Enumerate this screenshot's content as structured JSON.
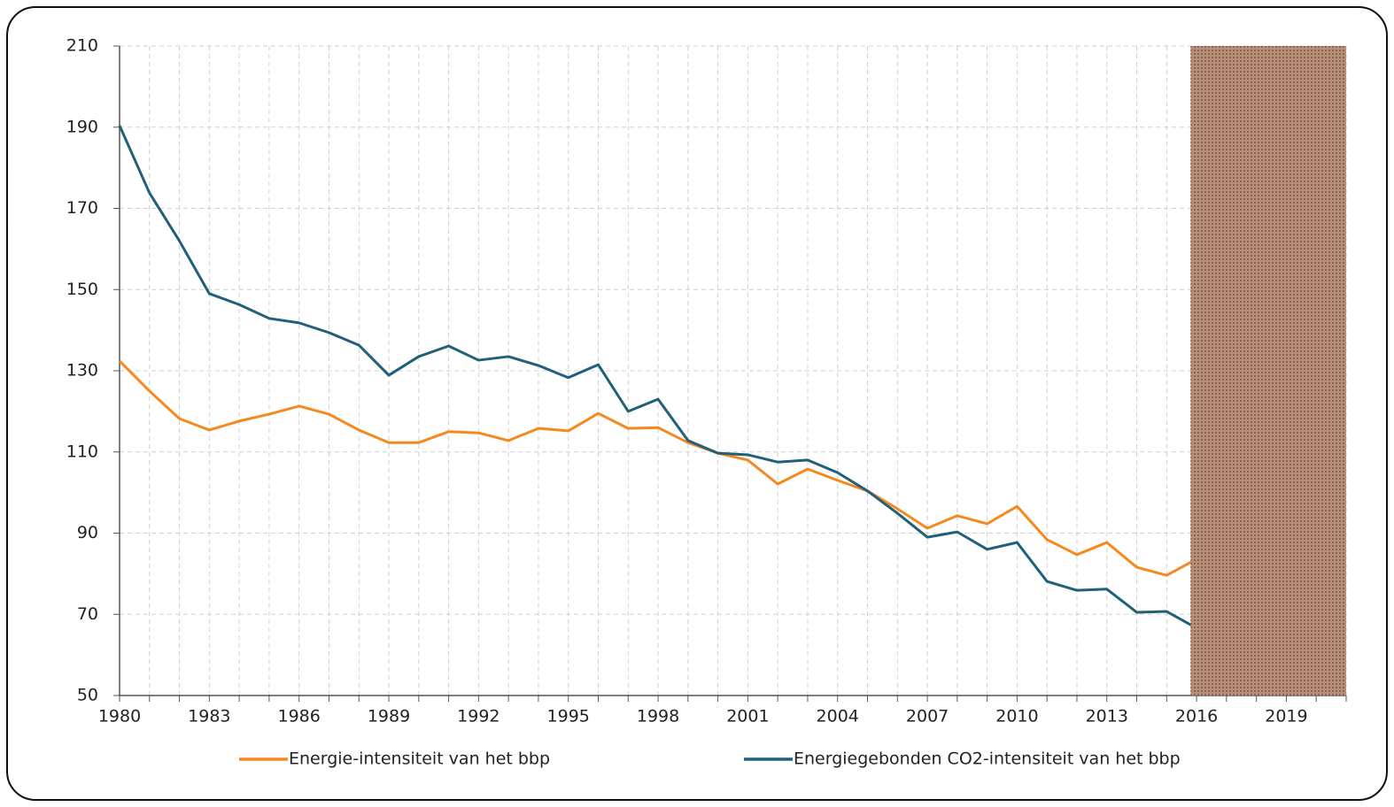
{
  "chart_data": {
    "type": "line",
    "x": [
      1980,
      1981,
      1982,
      1983,
      1984,
      1985,
      1986,
      1987,
      1988,
      1989,
      1990,
      1991,
      1992,
      1993,
      1994,
      1995,
      1996,
      1997,
      1998,
      1999,
      2000,
      2001,
      2002,
      2003,
      2004,
      2005,
      2006,
      2007,
      2008,
      2009,
      2010,
      2011,
      2012,
      2013,
      2014,
      2015,
      2016
    ],
    "series": [
      {
        "name": "Energie-intensiteit van het bbp",
        "color": "#f5891f",
        "values": [
          132.4,
          125,
          118.2,
          115.4,
          117.6,
          119.3,
          121.3,
          119.3,
          115.4,
          112.3,
          112.3,
          115,
          114.7,
          112.8,
          115.8,
          115.2,
          119.5,
          115.8,
          116,
          112.3,
          109.7,
          108,
          102.1,
          105.8,
          103,
          100.4,
          96,
          91.2,
          94.3,
          92.3,
          96.6,
          88.4,
          84.7,
          87.7,
          81.6,
          79.6,
          83.6
        ]
      },
      {
        "name": "Energiegebonden CO2-intensiteit van het bbp",
        "color": "#21607a",
        "values": [
          190.4,
          173.8,
          162,
          149,
          146.3,
          142.9,
          141.8,
          139.4,
          136.3,
          128.9,
          133.5,
          136.1,
          132.6,
          133.5,
          131.3,
          128.3,
          131.5,
          120,
          123,
          112.8,
          109.7,
          109.3,
          107.5,
          108,
          104.9,
          100.4,
          94.9,
          89,
          90.3,
          86,
          87.7,
          78.1,
          75.9,
          76.2,
          70.5,
          70.7,
          66.6
        ]
      }
    ],
    "xlim": [
      1980,
      2021
    ],
    "xticks": [
      1980,
      1983,
      1986,
      1989,
      1992,
      1995,
      1998,
      2001,
      2004,
      2007,
      2010,
      2013,
      2016,
      2019
    ],
    "xminorticks": [
      1980,
      1981,
      1982,
      1983,
      1984,
      1985,
      1986,
      1987,
      1988,
      1989,
      1990,
      1991,
      1992,
      1993,
      1994,
      1995,
      1996,
      1997,
      1998,
      1999,
      2000,
      2001,
      2002,
      2003,
      2004,
      2005,
      2006,
      2007,
      2008,
      2009,
      2010,
      2011,
      2012,
      2013,
      2014,
      2015,
      2016,
      2017,
      2018,
      2019,
      2020,
      2021
    ],
    "ylim": [
      50,
      210
    ],
    "yticks": [
      50,
      70,
      90,
      110,
      130,
      150,
      170,
      190,
      210
    ],
    "grid": true,
    "shaded_span": {
      "from": 2015.8,
      "to": 2021,
      "color": "#b8907a"
    },
    "legend": "bottom"
  }
}
